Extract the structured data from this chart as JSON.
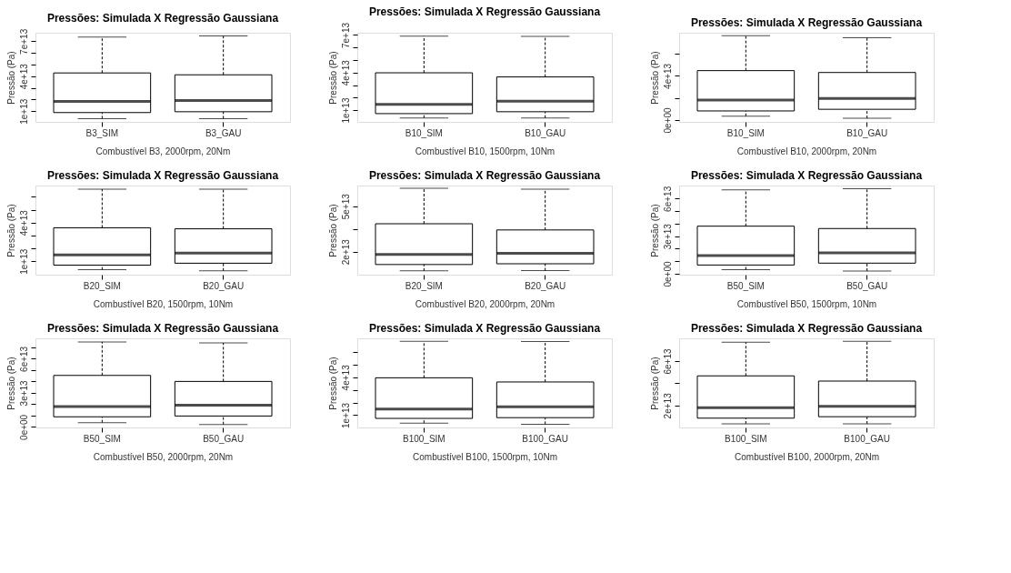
{
  "chart_data": [
    {
      "type": "box",
      "title": "Pressões: Simulada X Regressão Gaussiana",
      "xlabel": "Combustível B3, 2000rpm, 20Nm",
      "ylabel": "Pressão (Pa)",
      "categories": [
        "B3_SIM",
        "B3_GAU"
      ],
      "boxes": [
        {
          "low": 3600000000000.0,
          "q1": 8800000000000.0,
          "median": 18300000000000.0,
          "q3": 42800000000000.0,
          "high": 73500000000000.0
        },
        {
          "low": 3600000000000.0,
          "q1": 9500000000000.0,
          "median": 19200000000000.0,
          "q3": 41200000000000.0,
          "high": 74500000000000.0
        }
      ],
      "ylim": [
        800000000000.0,
        77300000000000.0
      ],
      "yticks": [
        {
          "value": 10000000000000.0,
          "label": "1e+13"
        },
        {
          "value": 20000000000000.0,
          "label": null
        },
        {
          "value": 30000000000000.0,
          "label": null
        },
        {
          "value": 40000000000000.0,
          "label": "4e+13"
        },
        {
          "value": 50000000000000.0,
          "label": null
        },
        {
          "value": 60000000000000.0,
          "label": null
        },
        {
          "value": 70000000000000.0,
          "label": "7e+13"
        }
      ]
    },
    {
      "type": "box",
      "title": "Pressões: Simulada X Regressão Gaussiana",
      "xlabel": "Combustível B10, 1500rpm, 10Nm",
      "ylabel": "Pressão (Pa)",
      "categories": [
        "B10_SIM",
        "B10_GAU"
      ],
      "boxes": [
        {
          "low": 3700000000000.0,
          "q1": 7200000000000.0,
          "median": 14600000000000.0,
          "q3": 39800000000000.0,
          "high": 69100000000000.0
        },
        {
          "low": 3700000000000.0,
          "q1": 8700000000000.0,
          "median": 17200000000000.0,
          "q3": 36500000000000.0,
          "high": 68900000000000.0
        }
      ],
      "ylim": [
        600000000000.0,
        71800000000000.0
      ],
      "yticks": [
        {
          "value": 10000000000000.0,
          "label": "1e+13"
        },
        {
          "value": 20000000000000.0,
          "label": null
        },
        {
          "value": 30000000000000.0,
          "label": null
        },
        {
          "value": 40000000000000.0,
          "label": "4e+13"
        },
        {
          "value": 50000000000000.0,
          "label": null
        },
        {
          "value": 60000000000000.0,
          "label": null
        },
        {
          "value": 70000000000000.0,
          "label": "7e+13"
        }
      ]
    },
    {
      "type": "box",
      "title": "Pressões: Simulada X Regressão Gaussiana",
      "xlabel": "Combustível B10, 2000rpm, 20Nm",
      "ylabel": "Pressão (Pa)",
      "categories": [
        "B10_SIM",
        "B10_GAU"
      ],
      "boxes": [
        {
          "low": 3500000000000.0,
          "q1": 8200000000000.0,
          "median": 18100000000000.0,
          "q3": 44700000000000.0,
          "high": 76300000000000.0
        },
        {
          "low": 1500000000000.0,
          "q1": 9700000000000.0,
          "median": 19600000000000.0,
          "q3": 43000000000000.0,
          "high": 74500000000000.0
        }
      ],
      "ylim": [
        -1700000000000.0,
        79000000000000.0
      ],
      "yticks": [
        {
          "value": 0,
          "label": "0e+00"
        },
        {
          "value": 20000000000000.0,
          "label": null
        },
        {
          "value": 40000000000000.0,
          "label": "4e+13"
        },
        {
          "value": 60000000000000.0,
          "label": null
        }
      ]
    },
    {
      "type": "box",
      "title": "Pressões: Simulada X Regressão Gaussiana",
      "xlabel": "Combustível B20, 1500rpm, 10Nm",
      "ylabel": "Pressão (Pa)",
      "categories": [
        "B20_SIM",
        "B20_GAU"
      ],
      "boxes": [
        {
          "low": 3400000000000.0,
          "q1": 7000000000000.0,
          "median": 14900000000000.0,
          "q3": 36000000000000.0,
          "high": 66000000000000.0
        },
        {
          "low": 2600000000000.0,
          "q1": 8500000000000.0,
          "median": 16300000000000.0,
          "q3": 35200000000000.0,
          "high": 66000000000000.0
        }
      ],
      "ylim": [
        -400000000000.0,
        68800000000000.0
      ],
      "yticks": [
        {
          "value": 10000000000000.0,
          "label": "1e+13"
        },
        {
          "value": 20000000000000.0,
          "label": null
        },
        {
          "value": 30000000000000.0,
          "label": null
        },
        {
          "value": 40000000000000.0,
          "label": "4e+13"
        },
        {
          "value": 50000000000000.0,
          "label": null
        },
        {
          "value": 60000000000000.0,
          "label": null
        }
      ]
    },
    {
      "type": "box",
      "title": "Pressões: Simulada X Regressão Gaussiana",
      "xlabel": "Combustível B20, 2000rpm, 20Nm",
      "ylabel": "Pressão (Pa)",
      "categories": [
        "B20_SIM",
        "B20_GAU"
      ],
      "boxes": [
        {
          "low": 7300000000000.0,
          "q1": 11500000000000.0,
          "median": 18200000000000.0,
          "q3": 38400000000000.0,
          "high": 61800000000000.0
        },
        {
          "low": 7500000000000.0,
          "q1": 12000000000000.0,
          "median": 18900000000000.0,
          "q3": 34300000000000.0,
          "high": 61200000000000.0
        }
      ],
      "ylim": [
        4800000000000.0,
        63600000000000.0
      ],
      "yticks": [
        {
          "value": 20000000000000.0,
          "label": "2e+13"
        },
        {
          "value": 35000000000000.0,
          "label": null
        },
        {
          "value": 50000000000000.0,
          "label": "5e+13"
        }
      ]
    },
    {
      "type": "box",
      "title": "Pressões: Simulada X Regressão Gaussiana",
      "xlabel": "Combustível B50, 1500rpm, 10Nm",
      "ylabel": "Pressão (Pa)",
      "categories": [
        "B50_SIM",
        "B50_GAU"
      ],
      "boxes": [
        {
          "low": 3300000000000.0,
          "q1": 7000000000000.0,
          "median": 14600000000000.0,
          "q3": 38000000000000.0,
          "high": 67000000000000.0
        },
        {
          "low": 2200000000000.0,
          "q1": 8500000000000.0,
          "median": 16700000000000.0,
          "q3": 36100000000000.0,
          "high": 67800000000000.0
        }
      ],
      "ylim": [
        -700000000000.0,
        70400000000000.0
      ],
      "yticks": [
        {
          "value": 0,
          "label": "0e+00"
        },
        {
          "value": 10000000000000.0,
          "label": null
        },
        {
          "value": 20000000000000.0,
          "label": null
        },
        {
          "value": 30000000000000.0,
          "label": "3e+13"
        },
        {
          "value": 40000000000000.0,
          "label": null
        },
        {
          "value": 50000000000000.0,
          "label": null
        },
        {
          "value": 60000000000000.0,
          "label": "6e+13"
        }
      ]
    },
    {
      "type": "box",
      "title": "Pressões: Simulada X Regressão Gaussiana",
      "xlabel": "Combustível B50, 2000rpm, 20Nm",
      "ylabel": "Pressão (Pa)",
      "categories": [
        "B50_SIM",
        "B50_GAU"
      ],
      "boxes": [
        {
          "low": 3800000000000.0,
          "q1": 8900000000000.0,
          "median": 18000000000000.0,
          "q3": 45300000000000.0,
          "high": 74800000000000.0
        },
        {
          "low": 2200000000000.0,
          "q1": 9600000000000.0,
          "median": 19200000000000.0,
          "q3": 40000000000000.0,
          "high": 73900000000000.0
        }
      ],
      "ylim": [
        -500000000000.0,
        77900000000000.0
      ],
      "yticks": [
        {
          "value": 0,
          "label": "0e+00"
        },
        {
          "value": 10000000000000.0,
          "label": null
        },
        {
          "value": 20000000000000.0,
          "label": null
        },
        {
          "value": 30000000000000.0,
          "label": "3e+13"
        },
        {
          "value": 40000000000000.0,
          "label": null
        },
        {
          "value": 50000000000000.0,
          "label": null
        },
        {
          "value": 60000000000000.0,
          "label": "6e+13"
        },
        {
          "value": 70000000000000.0,
          "label": null
        }
      ]
    },
    {
      "type": "box",
      "title": "Pressões: Simulada X Regressão Gaussiana",
      "xlabel": "Combustível B100, 1500rpm, 10Nm",
      "ylabel": "Pressão (Pa)",
      "categories": [
        "B100_SIM",
        "B100_GAU"
      ],
      "boxes": [
        {
          "low": 3700000000000.0,
          "q1": 7400000000000.0,
          "median": 14800000000000.0,
          "q3": 39600000000000.0,
          "high": 68500000000000.0
        },
        {
          "low": 2800000000000.0,
          "q1": 8000000000000.0,
          "median": 16700000000000.0,
          "q3": 36300000000000.0,
          "high": 68300000000000.0
        }
      ],
      "ylim": [
        200000000000.0,
        70900000000000.0
      ],
      "yticks": [
        {
          "value": 10000000000000.0,
          "label": "1e+13"
        },
        {
          "value": 20000000000000.0,
          "label": null
        },
        {
          "value": 30000000000000.0,
          "label": null
        },
        {
          "value": 40000000000000.0,
          "label": "4e+13"
        },
        {
          "value": 50000000000000.0,
          "label": null
        },
        {
          "value": 60000000000000.0,
          "label": null
        }
      ]
    },
    {
      "type": "box",
      "title": "Pressões: Simulada X Regressão Gaussiana",
      "xlabel": "Combustível B100, 2000rpm, 20Nm",
      "ylabel": "Pressão (Pa)",
      "categories": [
        "B100_SIM",
        "B100_GAU"
      ],
      "boxes": [
        {
          "low": 3500000000000.0,
          "q1": 8600000000000.0,
          "median": 18000000000000.0,
          "q3": 46700000000000.0,
          "high": 77000000000000.0
        },
        {
          "low": 3500000000000.0,
          "q1": 9900000000000.0,
          "median": 19300000000000.0,
          "q3": 42000000000000.0,
          "high": 77800000000000.0
        }
      ],
      "ylim": [
        200000000000.0,
        80500000000000.0
      ],
      "yticks": [
        {
          "value": 20000000000000.0,
          "label": "2e+13"
        },
        {
          "value": 40000000000000.0,
          "label": null
        },
        {
          "value": 60000000000000.0,
          "label": "6e+13"
        }
      ]
    }
  ]
}
